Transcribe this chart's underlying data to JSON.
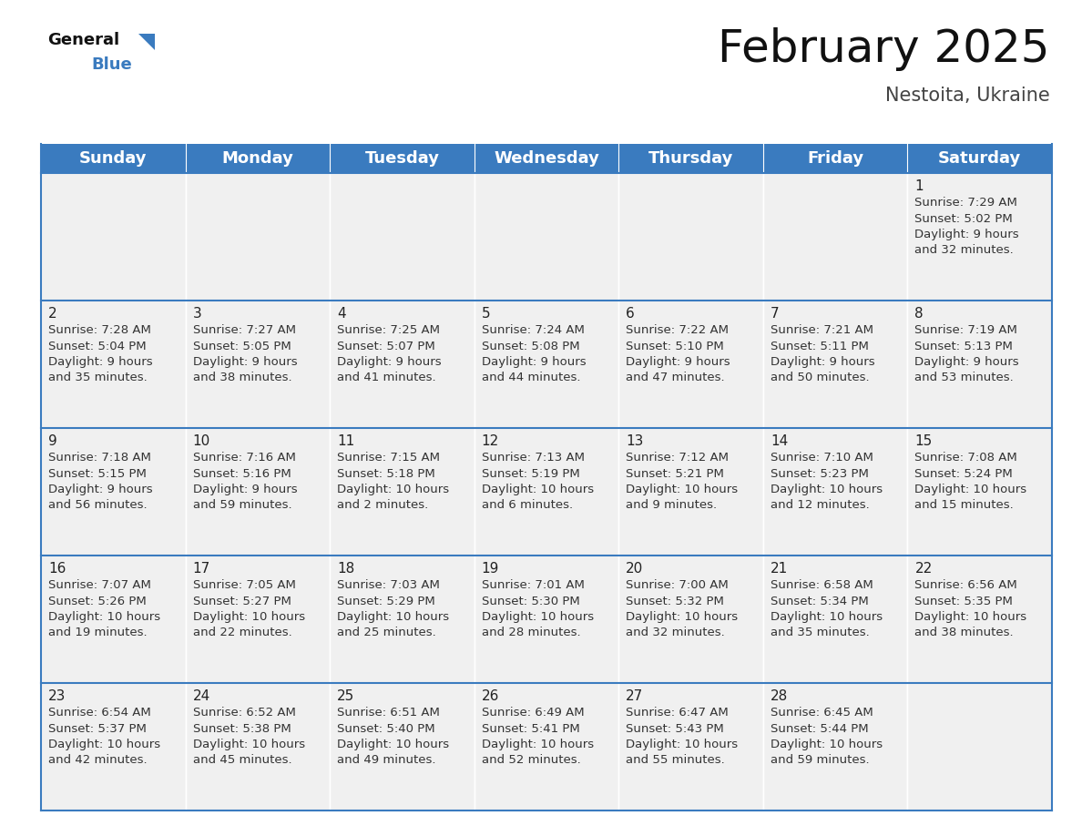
{
  "title": "February 2025",
  "subtitle": "Nestoita, Ukraine",
  "header_color": "#3a7bbf",
  "header_text_color": "#ffffff",
  "cell_bg_even": "#f0f0f0",
  "cell_bg_white": "#ffffff",
  "border_color": "#3a7bbf",
  "text_color": "#333333",
  "day_names": [
    "Sunday",
    "Monday",
    "Tuesday",
    "Wednesday",
    "Thursday",
    "Friday",
    "Saturday"
  ],
  "title_fontsize": 36,
  "subtitle_fontsize": 15,
  "day_header_fontsize": 13,
  "day_num_fontsize": 11,
  "cell_text_fontsize": 9.5,
  "calendar": [
    [
      {
        "day": null,
        "sunrise": null,
        "sunset": null,
        "daylight": null
      },
      {
        "day": null,
        "sunrise": null,
        "sunset": null,
        "daylight": null
      },
      {
        "day": null,
        "sunrise": null,
        "sunset": null,
        "daylight": null
      },
      {
        "day": null,
        "sunrise": null,
        "sunset": null,
        "daylight": null
      },
      {
        "day": null,
        "sunrise": null,
        "sunset": null,
        "daylight": null
      },
      {
        "day": null,
        "sunrise": null,
        "sunset": null,
        "daylight": null
      },
      {
        "day": 1,
        "sunrise": "7:29 AM",
        "sunset": "5:02 PM",
        "daylight": "9 hours\nand 32 minutes."
      }
    ],
    [
      {
        "day": 2,
        "sunrise": "7:28 AM",
        "sunset": "5:04 PM",
        "daylight": "9 hours\nand 35 minutes."
      },
      {
        "day": 3,
        "sunrise": "7:27 AM",
        "sunset": "5:05 PM",
        "daylight": "9 hours\nand 38 minutes."
      },
      {
        "day": 4,
        "sunrise": "7:25 AM",
        "sunset": "5:07 PM",
        "daylight": "9 hours\nand 41 minutes."
      },
      {
        "day": 5,
        "sunrise": "7:24 AM",
        "sunset": "5:08 PM",
        "daylight": "9 hours\nand 44 minutes."
      },
      {
        "day": 6,
        "sunrise": "7:22 AM",
        "sunset": "5:10 PM",
        "daylight": "9 hours\nand 47 minutes."
      },
      {
        "day": 7,
        "sunrise": "7:21 AM",
        "sunset": "5:11 PM",
        "daylight": "9 hours\nand 50 minutes."
      },
      {
        "day": 8,
        "sunrise": "7:19 AM",
        "sunset": "5:13 PM",
        "daylight": "9 hours\nand 53 minutes."
      }
    ],
    [
      {
        "day": 9,
        "sunrise": "7:18 AM",
        "sunset": "5:15 PM",
        "daylight": "9 hours\nand 56 minutes."
      },
      {
        "day": 10,
        "sunrise": "7:16 AM",
        "sunset": "5:16 PM",
        "daylight": "9 hours\nand 59 minutes."
      },
      {
        "day": 11,
        "sunrise": "7:15 AM",
        "sunset": "5:18 PM",
        "daylight": "10 hours\nand 2 minutes."
      },
      {
        "day": 12,
        "sunrise": "7:13 AM",
        "sunset": "5:19 PM",
        "daylight": "10 hours\nand 6 minutes."
      },
      {
        "day": 13,
        "sunrise": "7:12 AM",
        "sunset": "5:21 PM",
        "daylight": "10 hours\nand 9 minutes."
      },
      {
        "day": 14,
        "sunrise": "7:10 AM",
        "sunset": "5:23 PM",
        "daylight": "10 hours\nand 12 minutes."
      },
      {
        "day": 15,
        "sunrise": "7:08 AM",
        "sunset": "5:24 PM",
        "daylight": "10 hours\nand 15 minutes."
      }
    ],
    [
      {
        "day": 16,
        "sunrise": "7:07 AM",
        "sunset": "5:26 PM",
        "daylight": "10 hours\nand 19 minutes."
      },
      {
        "day": 17,
        "sunrise": "7:05 AM",
        "sunset": "5:27 PM",
        "daylight": "10 hours\nand 22 minutes."
      },
      {
        "day": 18,
        "sunrise": "7:03 AM",
        "sunset": "5:29 PM",
        "daylight": "10 hours\nand 25 minutes."
      },
      {
        "day": 19,
        "sunrise": "7:01 AM",
        "sunset": "5:30 PM",
        "daylight": "10 hours\nand 28 minutes."
      },
      {
        "day": 20,
        "sunrise": "7:00 AM",
        "sunset": "5:32 PM",
        "daylight": "10 hours\nand 32 minutes."
      },
      {
        "day": 21,
        "sunrise": "6:58 AM",
        "sunset": "5:34 PM",
        "daylight": "10 hours\nand 35 minutes."
      },
      {
        "day": 22,
        "sunrise": "6:56 AM",
        "sunset": "5:35 PM",
        "daylight": "10 hours\nand 38 minutes."
      }
    ],
    [
      {
        "day": 23,
        "sunrise": "6:54 AM",
        "sunset": "5:37 PM",
        "daylight": "10 hours\nand 42 minutes."
      },
      {
        "day": 24,
        "sunrise": "6:52 AM",
        "sunset": "5:38 PM",
        "daylight": "10 hours\nand 45 minutes."
      },
      {
        "day": 25,
        "sunrise": "6:51 AM",
        "sunset": "5:40 PM",
        "daylight": "10 hours\nand 49 minutes."
      },
      {
        "day": 26,
        "sunrise": "6:49 AM",
        "sunset": "5:41 PM",
        "daylight": "10 hours\nand 52 minutes."
      },
      {
        "day": 27,
        "sunrise": "6:47 AM",
        "sunset": "5:43 PM",
        "daylight": "10 hours\nand 55 minutes."
      },
      {
        "day": 28,
        "sunrise": "6:45 AM",
        "sunset": "5:44 PM",
        "daylight": "10 hours\nand 59 minutes."
      },
      {
        "day": null,
        "sunrise": null,
        "sunset": null,
        "daylight": null
      }
    ]
  ]
}
